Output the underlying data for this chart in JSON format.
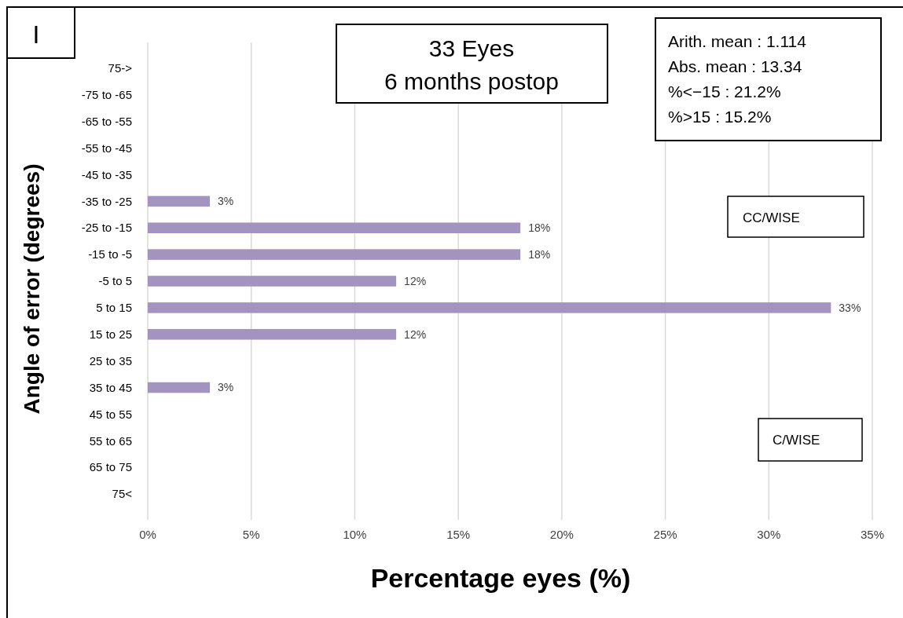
{
  "chart_data": {
    "type": "bar",
    "orientation": "horizontal",
    "title": "33 Eyes",
    "subtitle": "6 months postop",
    "xlabel": "Percentage eyes  (%)",
    "ylabel": "Angle of error (degrees)",
    "categories": [
      "75->",
      "-75 to -65",
      "-65 to -55",
      "-55 to -45",
      "-45 to -35",
      "-35 to -25",
      "-25 to -15",
      "-15 to -5",
      "-5 to 5",
      "5 to 15",
      "15 to 25",
      "25 to 35",
      "35 to 45",
      "45 to 55",
      "55 to 65",
      "65 to 75",
      "75<"
    ],
    "values": [
      null,
      null,
      null,
      null,
      null,
      3,
      18,
      18,
      12,
      33,
      12,
      null,
      3,
      null,
      null,
      null,
      null
    ],
    "value_labels": [
      null,
      null,
      null,
      null,
      null,
      "3%",
      "18%",
      "18%",
      "12%",
      "33%",
      "12%",
      null,
      "3%",
      null,
      null,
      null,
      null
    ],
    "color": "#a393bf",
    "xlim": [
      0,
      35
    ],
    "xticks": [
      {
        "value": 0,
        "label": "0%"
      },
      {
        "value": 5,
        "label": "5%"
      },
      {
        "value": 10,
        "label": "10%"
      },
      {
        "value": 15,
        "label": "15%"
      },
      {
        "value": 20,
        "label": "20%"
      },
      {
        "value": 25,
        "label": "25%"
      },
      {
        "value": 30,
        "label": "30%"
      },
      {
        "value": 35,
        "label": "35%"
      }
    ],
    "grid": "x",
    "annotations": [
      "I",
      "Arith. mean : 1.114",
      "Abs. mean : 13.34",
      "%<−15 : 21.2%",
      "%>15 : 15.2%",
      "CC/WISE",
      "C/WISE"
    ]
  }
}
